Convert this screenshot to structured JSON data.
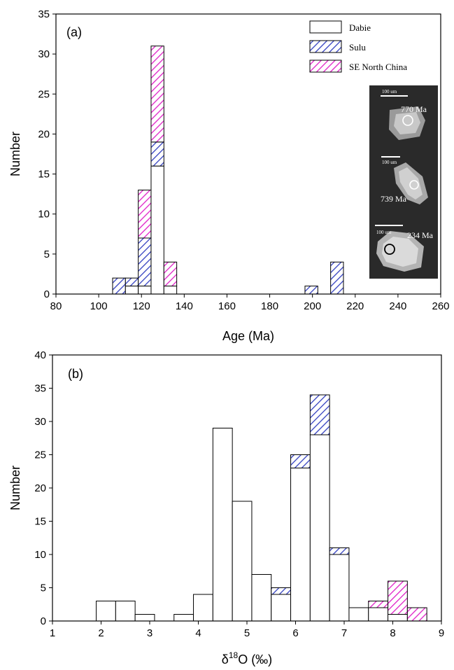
{
  "colors": {
    "dabie_fill": "#ffffff",
    "sulu_hatch": "#3340c0",
    "se_hatch": "#e020c8"
  },
  "legend": {
    "dabie": "Dabie",
    "sulu": "Sulu",
    "se": "SE North China"
  },
  "inset": {
    "ages": [
      "770 Ma",
      "739 Ma",
      "234 Ma"
    ],
    "scale": "100 um"
  },
  "chart_data": [
    {
      "type": "bar",
      "stacked": true,
      "panel_label": "(a)",
      "xlabel": "Age (Ma)",
      "ylabel": "Number",
      "xlim": [
        80,
        260
      ],
      "ylim": [
        0,
        35
      ],
      "xticks": [
        80,
        100,
        120,
        140,
        160,
        180,
        200,
        220,
        240,
        260
      ],
      "yticks": [
        0,
        5,
        10,
        15,
        20,
        25,
        30,
        35
      ],
      "bin_width": 6,
      "bins": [
        {
          "x0": 106.5,
          "dabie": 0,
          "sulu": 2,
          "se": 0
        },
        {
          "x0": 112.5,
          "dabie": 1,
          "sulu": 1,
          "se": 0
        },
        {
          "x0": 118.5,
          "dabie": 1,
          "sulu": 6,
          "se": 6
        },
        {
          "x0": 124.5,
          "dabie": 16,
          "sulu": 3,
          "se": 12
        },
        {
          "x0": 130.5,
          "dabie": 1,
          "sulu": 0,
          "se": 3
        },
        {
          "x0": 196.5,
          "dabie": 0,
          "sulu": 1,
          "se": 0
        },
        {
          "x0": 208.5,
          "dabie": 0,
          "sulu": 4,
          "se": 0
        }
      ]
    },
    {
      "type": "bar",
      "stacked": true,
      "panel_label": "(b)",
      "xlabel": "δ18O (‰)",
      "xlabel_base": "δ",
      "xlabel_sup": "18",
      "xlabel_rest": "O (‰)",
      "ylabel": "Number",
      "xlim": [
        1,
        9
      ],
      "ylim": [
        0,
        40
      ],
      "xticks": [
        1,
        2,
        3,
        4,
        5,
        6,
        7,
        8,
        9
      ],
      "yticks": [
        0,
        5,
        10,
        15,
        20,
        25,
        30,
        35,
        40
      ],
      "bin_width": 0.4,
      "bins": [
        {
          "x0": 1.9,
          "dabie": 3,
          "sulu": 0,
          "se": 0
        },
        {
          "x0": 2.3,
          "dabie": 3,
          "sulu": 0,
          "se": 0
        },
        {
          "x0": 2.7,
          "dabie": 1,
          "sulu": 0,
          "se": 0
        },
        {
          "x0": 3.5,
          "dabie": 1,
          "sulu": 0,
          "se": 0
        },
        {
          "x0": 3.9,
          "dabie": 4,
          "sulu": 0,
          "se": 0
        },
        {
          "x0": 4.3,
          "dabie": 29,
          "sulu": 0,
          "se": 0
        },
        {
          "x0": 4.7,
          "dabie": 18,
          "sulu": 0,
          "se": 0
        },
        {
          "x0": 5.1,
          "dabie": 7,
          "sulu": 0,
          "se": 0
        },
        {
          "x0": 5.5,
          "dabie": 4,
          "sulu": 1,
          "se": 0
        },
        {
          "x0": 5.9,
          "dabie": 23,
          "sulu": 2,
          "se": 0
        },
        {
          "x0": 6.3,
          "dabie": 28,
          "sulu": 6,
          "se": 0
        },
        {
          "x0": 6.7,
          "dabie": 10,
          "sulu": 1,
          "se": 0
        },
        {
          "x0": 7.1,
          "dabie": 2,
          "sulu": 0,
          "se": 0
        },
        {
          "x0": 7.5,
          "dabie": 2,
          "sulu": 0,
          "se": 1
        },
        {
          "x0": 7.9,
          "dabie": 1,
          "sulu": 0,
          "se": 5
        },
        {
          "x0": 8.3,
          "dabie": 0,
          "sulu": 0,
          "se": 2
        }
      ]
    }
  ]
}
